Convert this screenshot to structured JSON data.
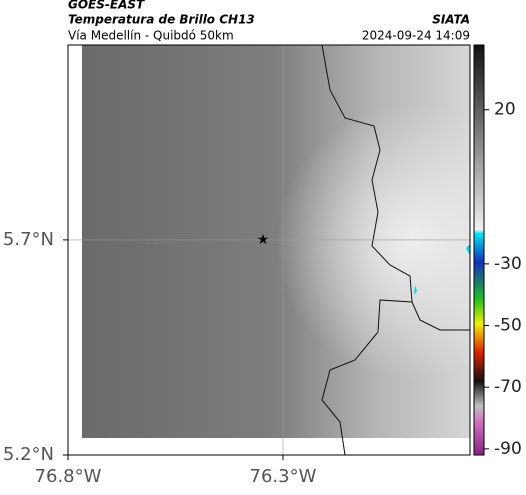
{
  "header": {
    "source": "GOES-EAST",
    "title": "Temperatura de Brillo CH13",
    "subtitle": "Vía Medellín - Quibdó 50km",
    "credit": "SIATA",
    "datetime": "2024-09-24 14:09"
  },
  "map": {
    "xlim": [
      -76.8,
      -75.865
    ],
    "ylim": [
      5.2,
      6.153
    ],
    "xticks": [
      {
        "value": -76.8,
        "label": "76.8°W"
      },
      {
        "value": -76.3,
        "label": "76.3°W"
      }
    ],
    "yticks": [
      {
        "value": 5.2,
        "label": "5.2°N"
      },
      {
        "value": 5.7,
        "label": "5.7°N"
      }
    ]
  },
  "colorbar": {
    "lim": [
      -92,
      41
    ],
    "ticks": [
      20,
      -30,
      -50,
      -70,
      -90
    ]
  }
}
